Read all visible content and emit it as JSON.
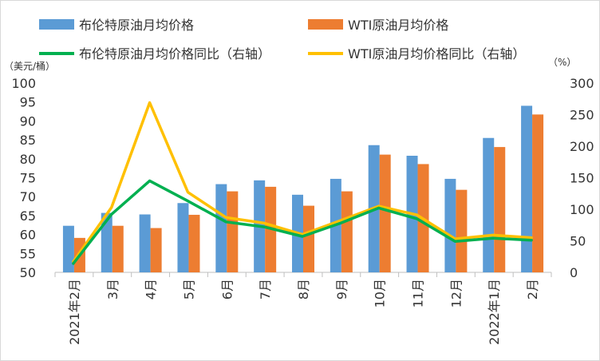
{
  "chart_data": {
    "type": "bar+line",
    "categories": [
      "2021年2月",
      "3月",
      "4月",
      "5月",
      "6月",
      "7月",
      "8月",
      "9月",
      "10月",
      "11月",
      "12月",
      "2022年1月",
      "2月"
    ],
    "series": [
      {
        "name": "布伦特原油月均价格",
        "type": "bar",
        "axis": "left",
        "color": "#5b9bd5",
        "values": [
          62.3,
          65.7,
          65.3,
          68.3,
          73.3,
          74.3,
          70.5,
          74.7,
          83.6,
          80.8,
          74.7,
          85.5,
          94.0
        ]
      },
      {
        "name": "WTI原油月均价格",
        "type": "bar",
        "axis": "left",
        "color": "#ed7d31",
        "values": [
          59.1,
          62.3,
          61.7,
          65.2,
          71.4,
          72.6,
          67.6,
          71.4,
          81.1,
          78.6,
          71.8,
          83.1,
          91.7
        ]
      },
      {
        "name": "布伦特原油月均价格同比（右轴）",
        "type": "line",
        "axis": "right",
        "color": "#00b050",
        "values": [
          14,
          92,
          145,
          113,
          80,
          72,
          57,
          78,
          102,
          85,
          49,
          54,
          51
        ]
      },
      {
        "name": "WTI原油月均价格同比（右轴）",
        "type": "line",
        "axis": "right",
        "color": "#ffc000",
        "values": [
          17,
          103,
          269,
          127,
          87,
          78,
          60,
          82,
          105,
          91,
          53,
          59,
          55
        ]
      }
    ],
    "left_axis": {
      "unit": "（美元/桶）",
      "min": 50,
      "max": 100,
      "step": 5,
      "ticks": [
        "50",
        "55",
        "60",
        "65",
        "70",
        "75",
        "80",
        "85",
        "90",
        "95",
        "100"
      ]
    },
    "right_axis": {
      "unit": "（%）",
      "min": 0,
      "max": 300,
      "step": 50,
      "ticks": [
        "0",
        "50",
        "100",
        "150",
        "200",
        "250",
        "300"
      ]
    },
    "legend_position": "top",
    "grid": false
  }
}
